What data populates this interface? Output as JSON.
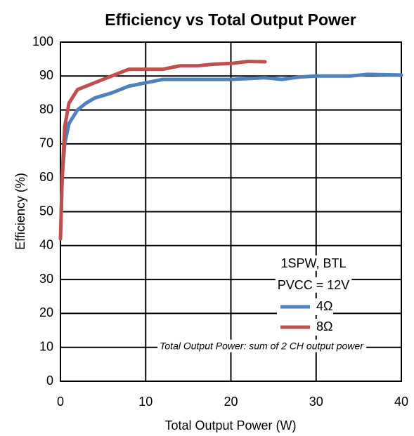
{
  "chart_data": {
    "type": "line",
    "title": "Efficiency vs Total Output Power",
    "xlabel": "Total Output Power (W)",
    "ylabel": "Efficiency (%)",
    "xlim": [
      0,
      40
    ],
    "xticks": [
      0,
      10,
      20,
      30,
      40
    ],
    "ylim": [
      0,
      100
    ],
    "yticks": [
      0,
      10,
      20,
      30,
      40,
      50,
      60,
      70,
      80,
      90,
      100
    ],
    "grid": true,
    "legend": {
      "position": "lower right",
      "title": [
        "1SPW, BTL",
        "PVCC = 12V"
      ]
    },
    "annotation": "Total Output Power: sum of 2 CH output power",
    "series": [
      {
        "name": "4Ω",
        "color": "#4f81bd",
        "x": [
          0.1,
          0.2,
          0.5,
          1,
          2,
          3,
          4,
          6,
          8,
          10,
          12,
          15,
          20,
          24,
          26,
          28,
          30,
          34,
          36,
          40
        ],
        "values": [
          50,
          60,
          70,
          76,
          80,
          82,
          83.5,
          85,
          87,
          88,
          89,
          89,
          89,
          89.5,
          89,
          89.7,
          90,
          90,
          90.5,
          90.3
        ]
      },
      {
        "name": "8Ω",
        "color": "#c0504d",
        "x": [
          0,
          0.2,
          0.5,
          1,
          2,
          4,
          6,
          8,
          10,
          12,
          14,
          16,
          18,
          20,
          22,
          24
        ],
        "values": [
          42,
          60,
          75,
          82,
          86,
          88,
          90,
          92,
          92,
          92,
          93,
          93,
          93.5,
          93.7,
          94.3,
          94.2
        ]
      }
    ]
  }
}
